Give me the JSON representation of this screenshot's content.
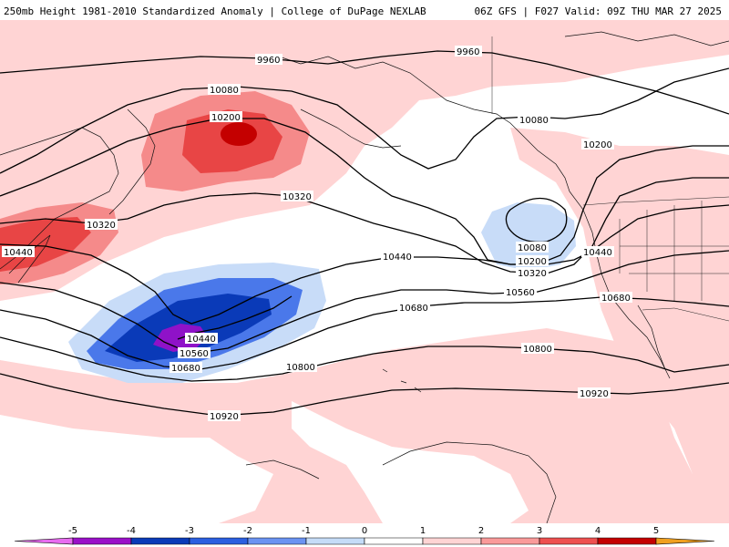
{
  "header": {
    "title": "250mb Height 1981-2010 Standardized Anomaly | College of DuPage NEXLAB",
    "run_info": "06Z GFS | F027 Valid: 09Z THU MAR 27 2025"
  },
  "contour_labels": {
    "h9960": "9960",
    "h10080": "10080",
    "h10200": "10200",
    "h10320": "10320",
    "h10440": "10440",
    "h10560": "10560",
    "h10680": "10680",
    "h10800": "10800",
    "h10920": "10920"
  },
  "colorbar": {
    "ticks": [
      "-5",
      "-4",
      "-3",
      "-2",
      "-1",
      "0",
      "1",
      "2",
      "3",
      "4",
      "5"
    ],
    "colors": [
      "#e86cf0",
      "#9a10c8",
      "#0a3ab8",
      "#2b5fe0",
      "#6b93f2",
      "#c5dcf8",
      "#ffffff",
      "#ffd4d4",
      "#fa9a9a",
      "#ee5050",
      "#c40000",
      "#f0a020"
    ],
    "anomaly_colors": {
      "weak_positive": "#ffd4d4",
      "moderate_positive": "#f58a8a",
      "strong_positive": "#e84545",
      "extreme_positive": "#c40000",
      "weak_negative": "#c8dcf8",
      "moderate_negative": "#4a78ea",
      "strong_negative": "#0a3ab8",
      "extreme_negative": "#8f12c8"
    }
  }
}
